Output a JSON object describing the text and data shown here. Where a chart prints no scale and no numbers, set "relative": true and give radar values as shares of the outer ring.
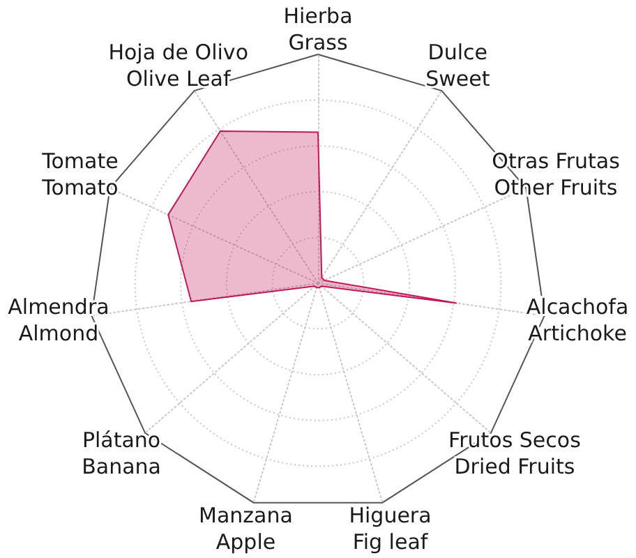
{
  "chart_data": {
    "type": "radar",
    "relative": true,
    "grid": true,
    "marker": "none",
    "categories": [
      "Hierba\nGrass",
      "Dulce\nSweet",
      "Otras Frutas\nOther Fruits",
      "Alcachofa\nArtichoke",
      "Frutos Secos\nDried Fruits",
      "Higuera\nFig leaf",
      "Manzana\nApple",
      "Plátano\nBanana",
      "Almendra\nAlmond",
      "Tomate\nTomato",
      "Hoja de Olivo\nOlive Leaf"
    ],
    "series": [
      {
        "color": "#c2185b",
        "values": [
          0.66,
          0.03,
          0.03,
          0.61,
          0.02,
          0.02,
          0.02,
          0.02,
          0.56,
          0.72,
          0.79
        ]
      }
    ]
  }
}
